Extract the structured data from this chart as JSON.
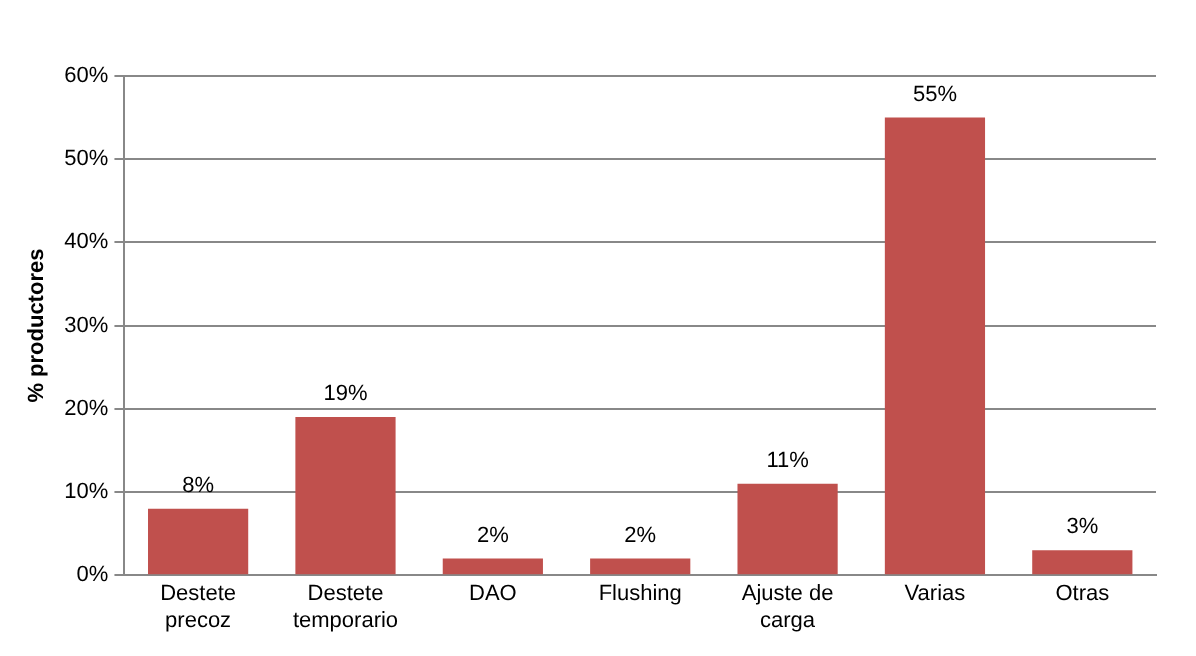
{
  "chart_data": {
    "type": "bar",
    "ylabel": "% productores",
    "categories": [
      "Destete precoz",
      "Destete temporario",
      "DAO",
      "Flushing",
      "Ajuste de carga",
      "Varias",
      "Otras"
    ],
    "values": [
      8,
      19,
      2,
      2,
      11,
      55,
      3
    ],
    "value_labels": [
      "8%",
      "19%",
      "2%",
      "2%",
      "11%",
      "55%",
      "3%"
    ],
    "color": "#c0504d",
    "ylim": [
      0,
      60
    ],
    "yticks": [
      {
        "value": 0,
        "label": "0%"
      },
      {
        "value": 10,
        "label": "10%"
      },
      {
        "value": 20,
        "label": "20%"
      },
      {
        "value": 30,
        "label": "30%"
      },
      {
        "value": 40,
        "label": "40%"
      },
      {
        "value": 50,
        "label": "50%"
      },
      {
        "value": 60,
        "label": "60%"
      }
    ],
    "grid": "y",
    "legend": false
  }
}
